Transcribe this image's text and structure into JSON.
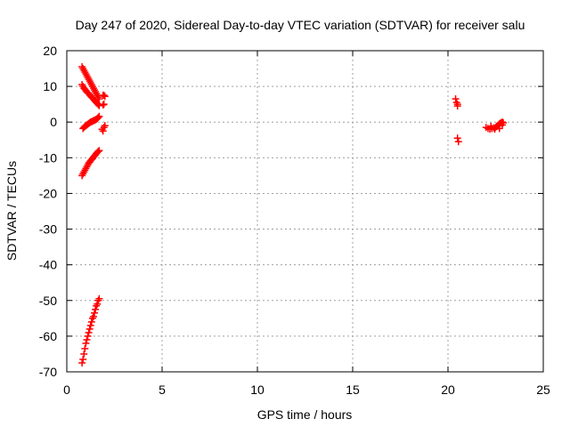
{
  "chart_data": {
    "type": "scatter",
    "title": "Day 247 of 2020, Sidereal Day-to-day VTEC variation (SDTVAR) for receiver salu",
    "xlabel": "GPS time / hours",
    "ylabel": "SDTVAR / TECUs",
    "xlim": [
      0,
      25
    ],
    "ylim": [
      -70,
      20
    ],
    "xticks": [
      0,
      5,
      10,
      15,
      20,
      25
    ],
    "yticks": [
      -70,
      -60,
      -50,
      -40,
      -30,
      -20,
      -10,
      0,
      10,
      20
    ],
    "grid": true,
    "marker": "+",
    "color": "#ff0000",
    "series": [
      {
        "x": [
          0.8,
          0.85,
          0.9,
          0.95,
          1.0,
          1.05,
          1.1,
          1.15,
          1.2,
          1.25,
          1.3,
          1.35,
          1.4,
          1.45,
          1.5,
          1.55,
          1.6,
          1.65,
          1.7
        ],
        "y": [
          -67.5,
          -66.5,
          -65.0,
          -63.5,
          -62.0,
          -61.0,
          -60.0,
          -59.0,
          -58.0,
          -57.0,
          -56.0,
          -55.0,
          -54.5,
          -53.5,
          -52.5,
          -51.5,
          -51.0,
          -50.0,
          -49.5
        ]
      },
      {
        "x": [
          0.8,
          0.85,
          0.9,
          0.95,
          1.0,
          1.05,
          1.1,
          1.15,
          1.2,
          1.25,
          1.3,
          1.35,
          1.4,
          1.45,
          1.5,
          1.55,
          1.6,
          1.65,
          1.7
        ],
        "y": [
          -15.0,
          -14.5,
          -14.0,
          -13.5,
          -13.0,
          -12.5,
          -12.0,
          -11.5,
          -11.2,
          -10.8,
          -10.5,
          -10.2,
          -9.8,
          -9.5,
          -9.2,
          -8.8,
          -8.5,
          -8.2,
          -8.0
        ]
      },
      {
        "x": [
          0.85,
          0.9,
          0.95,
          1.0,
          1.05,
          1.1,
          1.15,
          1.2,
          1.25,
          1.3,
          1.35,
          1.4,
          1.45,
          1.5,
          1.55,
          1.6,
          1.65,
          1.7
        ],
        "y": [
          -1.8,
          -1.5,
          -1.2,
          -1.0,
          -0.8,
          -0.6,
          -0.4,
          -0.2,
          0.0,
          0.1,
          0.2,
          0.4,
          0.5,
          0.6,
          0.8,
          1.0,
          1.3,
          1.6
        ]
      },
      {
        "x": [
          0.8,
          0.85,
          0.9,
          0.95,
          1.0,
          1.05,
          1.1,
          1.15,
          1.2,
          1.25,
          1.3,
          1.35,
          1.4,
          1.45,
          1.5,
          1.55,
          1.6,
          1.65,
          1.7
        ],
        "y": [
          10.5,
          10.0,
          9.5,
          9.2,
          8.8,
          8.5,
          8.2,
          8.0,
          7.6,
          7.3,
          7.0,
          6.7,
          6.4,
          6.1,
          5.8,
          5.5,
          5.2,
          4.9,
          4.6
        ]
      },
      {
        "x": [
          0.8,
          0.85,
          0.9,
          0.95,
          1.0,
          1.05,
          1.1,
          1.15,
          1.2,
          1.25,
          1.3,
          1.35,
          1.4,
          1.45,
          1.5,
          1.55,
          1.6,
          1.65,
          1.7
        ],
        "y": [
          15.5,
          15.0,
          14.5,
          14.0,
          13.5,
          13.0,
          12.5,
          12.0,
          11.5,
          11.0,
          10.5,
          10.0,
          9.5,
          9.0,
          8.5,
          8.0,
          7.5,
          7.0,
          6.5
        ]
      },
      {
        "x": [
          1.9,
          1.95,
          2.0,
          1.9,
          1.95,
          2.0,
          1.95,
          1.85,
          1.9
        ],
        "y": [
          7.5,
          7.5,
          7.2,
          4.8,
          5.0,
          -1.0,
          -1.5,
          -2.0,
          -2.5
        ]
      },
      {
        "x": [
          20.4,
          20.45,
          20.5,
          20.5,
          20.5,
          20.55
        ],
        "y": [
          6.5,
          5.5,
          5.0,
          4.5,
          -4.5,
          -5.5
        ]
      },
      {
        "x": [
          22.0,
          22.1,
          22.2,
          22.3,
          22.4,
          22.5,
          22.55,
          22.6,
          22.65,
          22.7,
          22.75,
          22.8,
          22.85,
          22.9,
          22.25,
          22.45,
          22.7,
          22.85
        ],
        "y": [
          -1.5,
          -1.8,
          -2.0,
          -1.8,
          -1.6,
          -1.5,
          -1.2,
          -1.0,
          -0.8,
          -0.5,
          -0.3,
          -0.2,
          0.0,
          -0.2,
          -1.2,
          -2.0,
          -1.8,
          -0.8
        ]
      }
    ]
  }
}
